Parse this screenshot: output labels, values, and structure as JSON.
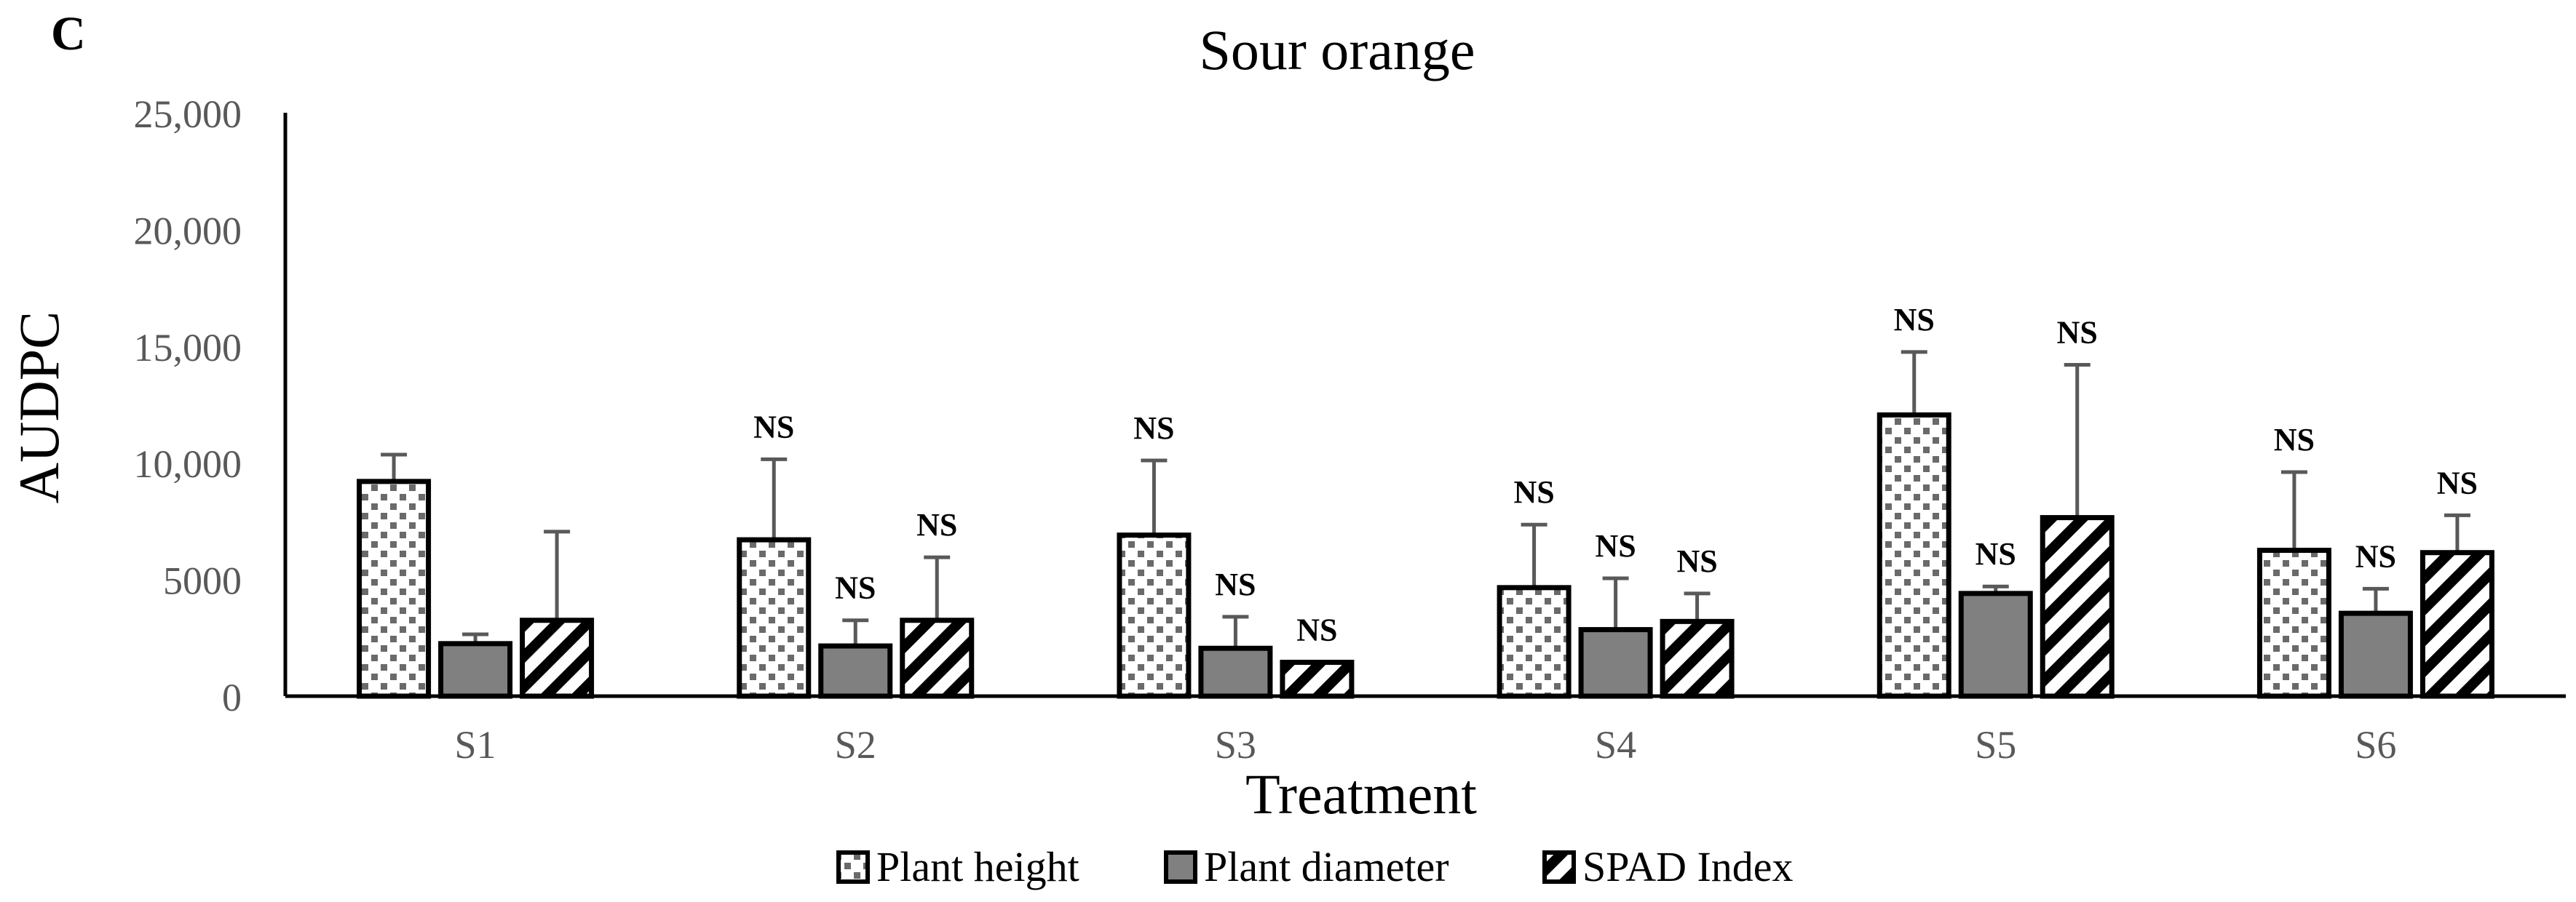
{
  "panel_label": "C",
  "chart_data": {
    "type": "bar",
    "title": "Sour orange",
    "xlabel": "Treatment",
    "ylabel": "AUDPC",
    "ylim": [
      0,
      25000
    ],
    "y_ticks": [
      0,
      5000,
      10000,
      15000,
      20000,
      25000
    ],
    "y_tick_labels": [
      "0",
      "5000",
      "10,000",
      "15,000",
      "20,000",
      "25,000"
    ],
    "categories": [
      "S1",
      "S2",
      "S3",
      "S4",
      "S5",
      "S6"
    ],
    "legend_position": "bottom",
    "series": [
      {
        "name": "Plant height",
        "pattern": "dots",
        "values": [
          9200,
          6700,
          6900,
          4650,
          12050,
          6250
        ],
        "errors": [
          1150,
          3450,
          3200,
          2700,
          2700,
          3350
        ],
        "annotations": [
          "",
          "NS",
          "NS",
          "NS",
          "NS",
          "NS"
        ]
      },
      {
        "name": "Plant diameter",
        "pattern": "solid",
        "values": [
          2250,
          2150,
          2050,
          2850,
          4400,
          3550
        ],
        "errors": [
          400,
          1100,
          1350,
          2200,
          300,
          1050
        ],
        "annotations": [
          "",
          "NS",
          "NS",
          "NS",
          "NS",
          "NS"
        ]
      },
      {
        "name": "SPAD Index",
        "pattern": "diagonal",
        "values": [
          3250,
          3250,
          1450,
          3200,
          7650,
          6150
        ],
        "errors": [
          3800,
          2700,
          0,
          1200,
          6550,
          1600
        ],
        "annotations": [
          "",
          "NS",
          "NS",
          "NS",
          "NS",
          "NS"
        ]
      }
    ]
  }
}
